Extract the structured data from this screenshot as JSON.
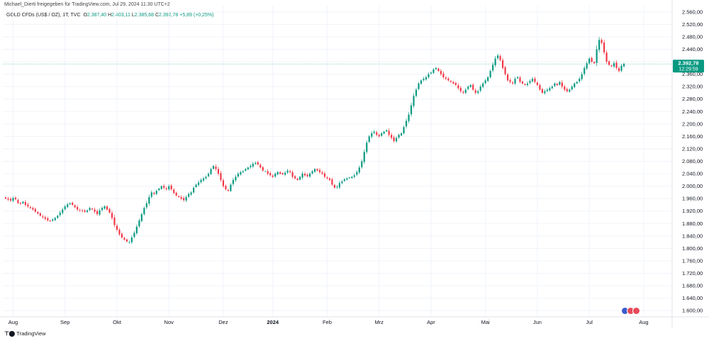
{
  "header": {
    "author_line": "Michael_Dierti freigegeben für TradingView.com, Jul 29, 2024 11:30 UTC+2",
    "symbol": "GOLD CFDs (US$ / OZ), 1T, TVC",
    "open_label": "O",
    "open": "2.387,40",
    "high_label": "H",
    "high": "2.403,11",
    "low_label": "L",
    "low": "2.385,68",
    "close_label": "C",
    "close": "2.392,78",
    "change": "+5,89 (+0,25%)"
  },
  "footer": {
    "brand": "TradingView",
    "brand_icon": "tradingview-logo-icon"
  },
  "price_tag": {
    "price": "2.392,78",
    "timer": "12:29:59"
  },
  "colors": {
    "up": "#089981",
    "down": "#f23645",
    "grid": "#f0f3fa",
    "axis_text": "#131722"
  },
  "chart_data": {
    "type": "candlestick",
    "title": "GOLD CFDs (US$ / OZ), 1T, TVC",
    "y_range": [
      1580,
      2580
    ],
    "y_ticks": [
      1600,
      1640,
      1680,
      1720,
      1760,
      1800,
      1840,
      1880,
      1920,
      1960,
      2000,
      2040,
      2080,
      2120,
      2160,
      2200,
      2240,
      2280,
      2320,
      2360,
      2400,
      2440,
      2480,
      2520,
      2560
    ],
    "y_tick_labels": [
      "1.600,00",
      "1.640,00",
      "1.680,00",
      "1.720,00",
      "1.760,00",
      "1.800,00",
      "1.840,00",
      "1.880,00",
      "1.920,00",
      "1.960,00",
      "2.000,00",
      "2.040,00",
      "2.080,00",
      "2.120,00",
      "2.160,00",
      "2.200,00",
      "2.240,00",
      "2.280,00",
      "2.320,00",
      "2.360,00",
      "2.400,00",
      "2.440,00",
      "2.480,00",
      "2.520,00",
      "2.560,00"
    ],
    "x_labels": [
      {
        "label": "Aug",
        "index": 3
      },
      {
        "label": "Sep",
        "index": 24
      },
      {
        "label": "Okt",
        "index": 45
      },
      {
        "label": "Nov",
        "index": 66
      },
      {
        "label": "Dez",
        "index": 88
      },
      {
        "label": "2024",
        "index": 108
      },
      {
        "label": "Feb",
        "index": 130
      },
      {
        "label": "Mrz",
        "index": 151
      },
      {
        "label": "Apr",
        "index": 172
      },
      {
        "label": "Mai",
        "index": 194
      },
      {
        "label": "Jun",
        "index": 215
      },
      {
        "label": "Jul",
        "index": 236
      },
      {
        "label": "Aug",
        "index": 258
      }
    ],
    "last_close": 2392.78,
    "closes": [
      1960,
      1957,
      1954,
      1962,
      1958,
      1946,
      1943,
      1950,
      1940,
      1935,
      1930,
      1925,
      1918,
      1912,
      1905,
      1900,
      1895,
      1890,
      1888,
      1893,
      1898,
      1905,
      1915,
      1925,
      1935,
      1942,
      1945,
      1940,
      1932,
      1925,
      1922,
      1920,
      1918,
      1922,
      1930,
      1925,
      1918,
      1910,
      1922,
      1930,
      1935,
      1925,
      1915,
      1898,
      1875,
      1860,
      1845,
      1835,
      1828,
      1822,
      1820,
      1835,
      1850,
      1870,
      1890,
      1910,
      1930,
      1945,
      1965,
      1980,
      1975,
      1985,
      1992,
      2000,
      1995,
      1990,
      2000,
      1990,
      1978,
      1970,
      1965,
      1960,
      1955,
      1965,
      1975,
      1980,
      1995,
      2005,
      2012,
      2020,
      2025,
      2030,
      2040,
      2055,
      2065,
      2055,
      2040,
      2020,
      2000,
      1990,
      1985,
      2005,
      2020,
      2030,
      2040,
      2045,
      2048,
      2055,
      2060,
      2065,
      2072,
      2075,
      2070,
      2060,
      2050,
      2048,
      2040,
      2035,
      2030,
      2040,
      2045,
      2040,
      2038,
      2043,
      2050,
      2045,
      2030,
      2025,
      2020,
      2030,
      2040,
      2035,
      2032,
      2040,
      2048,
      2055,
      2050,
      2045,
      2040,
      2030,
      2025,
      2020,
      2005,
      1995,
      1998,
      2010,
      2015,
      2022,
      2025,
      2028,
      2030,
      2035,
      2045,
      2060,
      2080,
      2110,
      2140,
      2160,
      2170,
      2175,
      2165,
      2160,
      2170,
      2175,
      2180,
      2165,
      2155,
      2145,
      2155,
      2165,
      2170,
      2190,
      2210,
      2230,
      2260,
      2290,
      2310,
      2330,
      2340,
      2345,
      2350,
      2360,
      2365,
      2375,
      2380,
      2370,
      2360,
      2350,
      2345,
      2340,
      2335,
      2330,
      2325,
      2315,
      2305,
      2300,
      2310,
      2320,
      2325,
      2310,
      2300,
      2305,
      2320,
      2330,
      2340,
      2350,
      2370,
      2390,
      2410,
      2420,
      2405,
      2380,
      2360,
      2340,
      2335,
      2330,
      2345,
      2350,
      2335,
      2330,
      2325,
      2330,
      2338,
      2345,
      2335,
      2325,
      2310,
      2300,
      2305,
      2310,
      2315,
      2320,
      2330,
      2325,
      2335,
      2320,
      2310,
      2305,
      2310,
      2320,
      2330,
      2335,
      2345,
      2360,
      2380,
      2395,
      2410,
      2400,
      2395,
      2440,
      2470,
      2460,
      2430,
      2400,
      2390,
      2385,
      2395,
      2380,
      2370,
      2387,
      2392.78
    ]
  }
}
